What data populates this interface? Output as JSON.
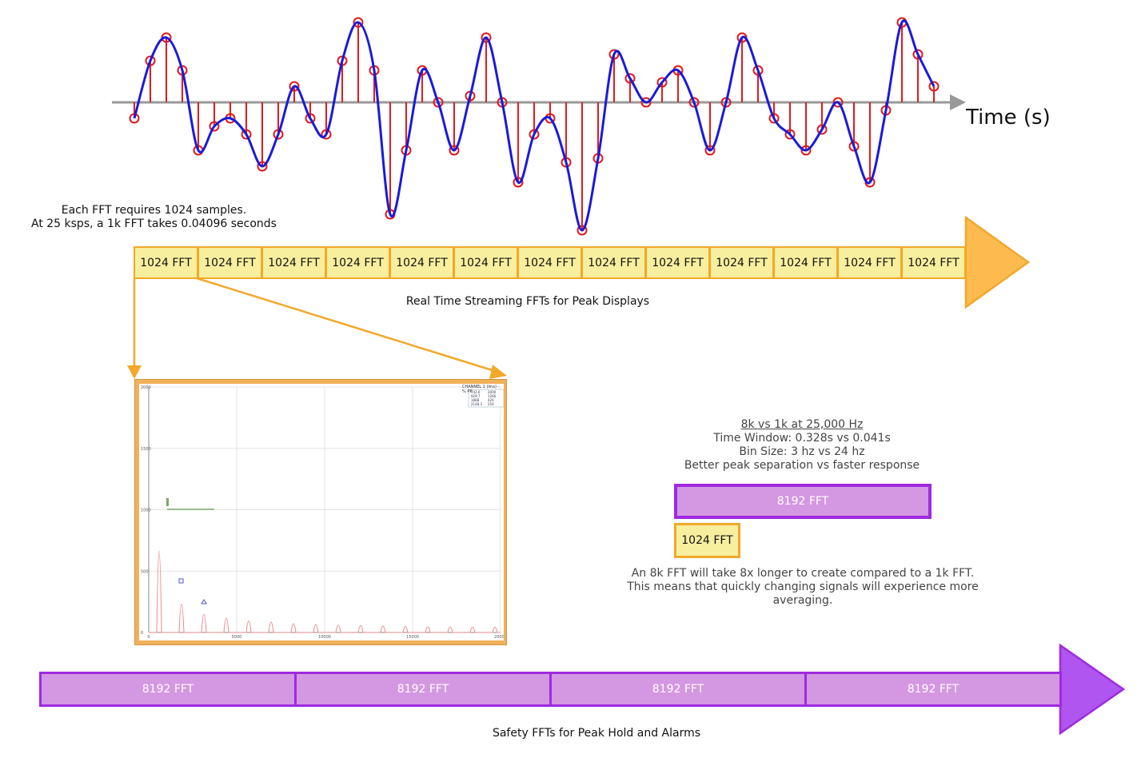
{
  "waveform": {
    "time_label": "Time (s)"
  },
  "top_info": {
    "line1": "Each FFT requires 1024 samples.",
    "line2": "At 25 ksps, a 1k FFT takes 0.04096 seconds"
  },
  "stream_1k": {
    "block_label": "1024 FFT",
    "blocks": [
      "1024 FFT",
      "1024 FFT",
      "1024 FFT",
      "1024 FFT",
      "1024 FFT",
      "1024 FFT",
      "1024 FFT",
      "1024 FFT",
      "1024 FFT",
      "1024 FFT",
      "1024 FFT",
      "1024 FFT",
      "1024 FFT"
    ],
    "caption": "Real Time Streaming FFTs for Peak Displays"
  },
  "comparison": {
    "heading": "8k vs 1k at 25,000 Hz",
    "line1": "Time Window: 0.328s vs 0.041s",
    "line2": "Bin Size: 3 hz vs 24 hz",
    "line3": "Better peak separation vs faster response",
    "box_8k": "8192 FFT",
    "box_1k": "1024 FFT",
    "note1": "An 8k FFT will take 8x longer to create compared to a 1k FFT.",
    "note2": "This means that quickly changing signals will experience more",
    "note3": "averaging."
  },
  "stream_8k": {
    "blocks": [
      "8192 FFT",
      "8192 FFT",
      "8192 FFT",
      "8192 FFT"
    ],
    "caption": "Safety FFTs for Peak Hold and Alarms"
  },
  "spectrum_panel": {
    "legend_title": "CHANNEL 1 (lins) - % PK",
    "legend_rows": [
      [
        "742.6",
        "2000"
      ],
      [
        "929.7",
        "1266"
      ],
      [
        "1888",
        "426"
      ],
      [
        "2148.3",
        "254"
      ]
    ],
    "y_ticks": [
      "2000",
      "1500",
      "1000",
      "500",
      "0"
    ],
    "x_ticks": [
      "0",
      "5000",
      "10000",
      "15000",
      "20000"
    ]
  },
  "colors": {
    "wave": "#1a1adb",
    "sample": "#e21a1a",
    "axis": "#999999",
    "orange": "#f2a829",
    "yellow_fill": "#f7ef9e",
    "purple": "#9f2ae0",
    "purple_fill": "#d497e2"
  }
}
